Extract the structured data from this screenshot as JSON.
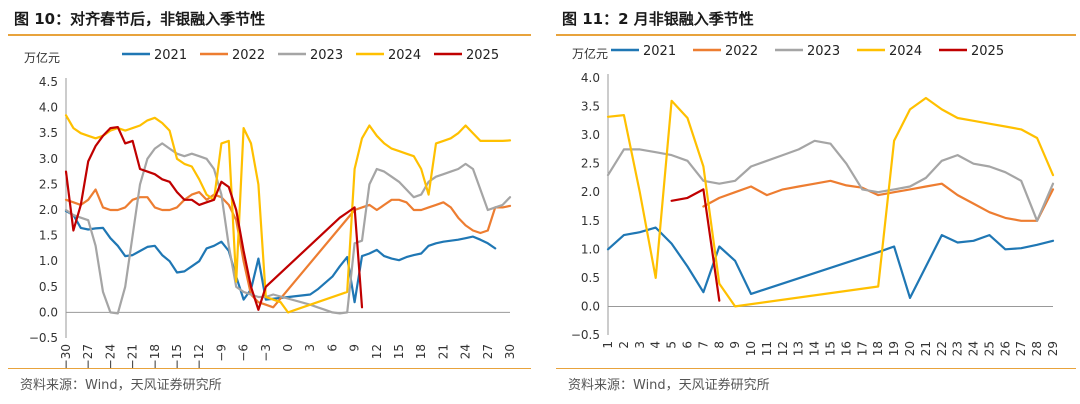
{
  "chart_data": [
    {
      "type": "line",
      "title": "图 10：对齐春节后，非银融入季节性",
      "ylabel": "万亿元",
      "xlabel": "",
      "ylim": [
        -0.5,
        4.5
      ],
      "yticks": [
        "−0.5",
        "0.0",
        "0.5",
        "1.0",
        "1.5",
        "2.0",
        "2.5",
        "3.0",
        "3.5",
        "4.0",
        "4.5"
      ],
      "xlim": [
        -30,
        30
      ],
      "xticks": [
        "−30",
        "−27",
        "−24",
        "−21",
        "−18",
        "−15",
        "−12",
        "−9",
        "−6",
        "−3",
        "0",
        "3",
        "6",
        "9",
        "12",
        "15",
        "18",
        "21",
        "24",
        "27",
        "30"
      ],
      "legend_position": "top",
      "source": "资料来源：Wind，天风证券研究所",
      "series": [
        {
          "name": "2021",
          "color": "#1f77b4",
          "x": [
            -30,
            -29,
            -28,
            -27,
            -26,
            -25,
            -24,
            -23,
            -22,
            -21,
            -20,
            -19,
            -18,
            -17,
            -16,
            -15,
            -14,
            -13,
            -12,
            -11,
            -10,
            -9,
            -8,
            -7,
            -6,
            -5,
            -4,
            -3,
            3,
            4,
            6,
            7,
            8,
            9,
            10,
            11,
            12,
            13,
            14,
            15,
            16,
            17,
            18,
            19,
            20,
            21,
            22,
            23,
            24,
            25,
            26,
            27,
            28
          ],
          "y": [
            1.98,
            1.9,
            1.65,
            1.62,
            1.64,
            1.65,
            1.45,
            1.3,
            1.1,
            1.12,
            1.2,
            1.28,
            1.3,
            1.12,
            1.0,
            0.78,
            0.8,
            0.9,
            1.0,
            1.25,
            1.3,
            1.38,
            1.2,
            0.7,
            0.25,
            0.45,
            1.05,
            0.25,
            0.35,
            0.45,
            0.7,
            0.9,
            1.08,
            0.2,
            1.1,
            1.15,
            1.22,
            1.1,
            1.05,
            1.02,
            1.08,
            1.12,
            1.15,
            1.3,
            1.35,
            1.38,
            1.4,
            1.42,
            1.45,
            1.48,
            1.42,
            1.35,
            1.25
          ]
        },
        {
          "name": "2022",
          "color": "#ed7d31",
          "x": [
            -30,
            -29,
            -28,
            -27,
            -26,
            -25,
            -24,
            -23,
            -22,
            -21,
            -20,
            -19,
            -18,
            -17,
            -16,
            -15,
            -14,
            -13,
            -12,
            -11,
            -10,
            -9,
            -8,
            -7,
            -6,
            -5,
            -4,
            -3,
            -2,
            9,
            10,
            11,
            12,
            13,
            14,
            15,
            16,
            17,
            18,
            19,
            20,
            21,
            22,
            23,
            24,
            25,
            26,
            27,
            28,
            29,
            30
          ],
          "y": [
            2.2,
            2.15,
            2.1,
            2.2,
            2.4,
            2.05,
            2.0,
            2.0,
            2.05,
            2.2,
            2.25,
            2.25,
            2.05,
            2.0,
            2.0,
            2.05,
            2.2,
            2.3,
            2.35,
            2.2,
            2.3,
            2.25,
            2.1,
            1.8,
            1.0,
            0.35,
            0.2,
            0.15,
            0.1,
            2.0,
            2.05,
            2.1,
            2.0,
            2.1,
            2.2,
            2.2,
            2.15,
            2.0,
            2.0,
            2.05,
            2.1,
            2.15,
            2.05,
            1.85,
            1.7,
            1.6,
            1.55,
            1.6,
            2.05,
            2.05,
            2.08
          ]
        },
        {
          "name": "2023",
          "color": "#a5a5a5",
          "x": [
            -30,
            -29,
            -28,
            -27,
            -26,
            -25,
            -24,
            -23,
            -22,
            -21,
            -20,
            -19,
            -18,
            -17,
            -16,
            -15,
            -14,
            -13,
            -12,
            -11,
            -10,
            -9,
            -8,
            -7,
            -6,
            -5,
            -4,
            -3,
            -2,
            3,
            4,
            5,
            6,
            7,
            8,
            9,
            10,
            11,
            12,
            13,
            14,
            15,
            16,
            17,
            18,
            19,
            20,
            21,
            22,
            23,
            24,
            25,
            26,
            27,
            28,
            29,
            30
          ],
          "y": [
            2.0,
            1.9,
            1.85,
            1.8,
            1.3,
            0.4,
            0.0,
            -0.02,
            0.5,
            1.5,
            2.5,
            3.0,
            3.2,
            3.3,
            3.2,
            3.1,
            3.05,
            3.1,
            3.05,
            3.0,
            2.8,
            2.3,
            1.3,
            0.5,
            0.4,
            0.35,
            0.3,
            0.3,
            0.35,
            0.15,
            0.1,
            0.05,
            0.0,
            -0.02,
            0.0,
            1.35,
            1.4,
            2.5,
            2.8,
            2.75,
            2.65,
            2.55,
            2.4,
            2.25,
            2.3,
            2.55,
            2.65,
            2.7,
            2.75,
            2.8,
            2.9,
            2.8,
            2.4,
            2.0,
            2.05,
            2.1,
            2.25
          ]
        },
        {
          "name": "2024",
          "color": "#ffc000",
          "x": [
            -30,
            -29,
            -28,
            -27,
            -26,
            -25,
            -24,
            -23,
            -22,
            -21,
            -20,
            -19,
            -18,
            -17,
            -16,
            -15,
            -14,
            -13,
            -12,
            -11,
            -10,
            -9,
            -8,
            -7,
            -6,
            -5,
            -4,
            -3,
            -2,
            -1,
            0,
            1,
            8,
            9,
            10,
            11,
            12,
            13,
            14,
            15,
            16,
            17,
            18,
            19,
            20,
            21,
            22,
            23,
            24,
            25,
            26,
            27,
            28,
            29,
            30
          ],
          "y": [
            3.85,
            3.6,
            3.5,
            3.45,
            3.4,
            3.45,
            3.55,
            3.6,
            3.55,
            3.6,
            3.65,
            3.75,
            3.8,
            3.7,
            3.55,
            3.0,
            2.9,
            2.85,
            2.6,
            2.3,
            2.2,
            3.3,
            3.35,
            0.6,
            3.6,
            3.3,
            2.5,
            0.3,
            0.25,
            0.2,
            0.0,
            0.05,
            0.4,
            2.8,
            3.4,
            3.65,
            3.45,
            3.3,
            3.2,
            3.15,
            3.1,
            3.05,
            2.8,
            2.3,
            3.3,
            3.35,
            3.4,
            3.5,
            3.65,
            3.5,
            3.35,
            3.35,
            3.35,
            3.35,
            3.36
          ]
        },
        {
          "name": "2025",
          "color": "#c00000",
          "x": [
            -30,
            -29,
            -28,
            -27,
            -26,
            -25,
            -24,
            -23,
            -22,
            -21,
            -20,
            -19,
            -18,
            -17,
            -16,
            -15,
            -14,
            -13,
            -12,
            -11,
            -10,
            -9,
            -8,
            -7,
            -6,
            -5,
            -4,
            -3,
            7,
            8,
            9,
            10
          ],
          "y": [
            2.75,
            1.6,
            2.1,
            2.95,
            3.25,
            3.45,
            3.6,
            3.62,
            3.3,
            3.35,
            2.8,
            2.75,
            2.7,
            2.6,
            2.55,
            2.35,
            2.2,
            2.2,
            2.1,
            2.15,
            2.2,
            2.55,
            2.45,
            2.0,
            1.2,
            0.5,
            0.05,
            0.5,
            1.85,
            1.95,
            2.05,
            0.1
          ]
        }
      ]
    },
    {
      "type": "line",
      "title": "图 11：2 月非银融入季节性",
      "ylabel": "万亿元",
      "xlabel": "",
      "ylim": [
        -0.5,
        4.0
      ],
      "yticks": [
        "−0.5",
        "0.0",
        "0.5",
        "1.0",
        "1.5",
        "2.0",
        "2.5",
        "3.0",
        "3.5",
        "4.0"
      ],
      "xlim": [
        1,
        29
      ],
      "xticks": [
        "1",
        "2",
        "3",
        "4",
        "5",
        "6",
        "7",
        "8",
        "9",
        "10",
        "11",
        "12",
        "13",
        "14",
        "15",
        "16",
        "17",
        "18",
        "19",
        "20",
        "21",
        "22",
        "23",
        "24",
        "25",
        "26",
        "27",
        "28",
        "29"
      ],
      "legend_position": "top",
      "source": "资料来源：Wind，天风证券研究所",
      "series": [
        {
          "name": "2021",
          "color": "#1f77b4",
          "x": [
            1,
            2,
            3,
            4,
            5,
            6,
            7,
            8,
            9,
            10,
            18,
            19,
            20,
            21,
            22,
            23,
            24,
            25,
            26,
            27,
            28,
            29
          ],
          "y": [
            1.0,
            1.25,
            1.3,
            1.38,
            1.1,
            0.7,
            0.25,
            1.05,
            0.8,
            0.22,
            0.95,
            1.05,
            0.15,
            0.7,
            1.25,
            1.12,
            1.15,
            1.25,
            1.0,
            1.02,
            1.08,
            1.15
          ]
        },
        {
          "name": "2022",
          "color": "#ed7d31",
          "x": [
            7,
            8,
            9,
            10,
            11,
            12,
            13,
            14,
            15,
            16,
            17,
            18,
            19,
            20,
            21,
            22,
            23,
            24,
            25,
            26,
            27,
            28,
            29
          ],
          "y": [
            1.75,
            1.9,
            2.0,
            2.1,
            1.95,
            2.05,
            2.1,
            2.15,
            2.2,
            2.12,
            2.08,
            1.95,
            2.0,
            2.05,
            2.1,
            2.15,
            1.95,
            1.8,
            1.65,
            1.55,
            1.5,
            1.5,
            2.05
          ]
        },
        {
          "name": "2023",
          "color": "#a5a5a5",
          "x": [
            1,
            2,
            3,
            4,
            5,
            6,
            7,
            8,
            9,
            10,
            11,
            12,
            13,
            14,
            15,
            16,
            17,
            18,
            19,
            20,
            21,
            22,
            23,
            24,
            25,
            26,
            27,
            28,
            29
          ],
          "y": [
            2.3,
            2.75,
            2.75,
            2.7,
            2.65,
            2.55,
            2.2,
            2.15,
            2.2,
            2.45,
            2.55,
            2.65,
            2.75,
            2.9,
            2.85,
            2.5,
            2.05,
            2.0,
            2.05,
            2.1,
            2.25,
            2.55,
            2.65,
            2.5,
            2.45,
            2.35,
            2.2,
            1.5,
            2.15
          ]
        },
        {
          "name": "2024",
          "color": "#ffc000",
          "x": [
            1,
            2,
            3,
            4,
            5,
            6,
            7,
            8,
            9,
            18,
            19,
            20,
            21,
            22,
            23,
            24,
            25,
            26,
            27,
            28,
            29
          ],
          "y": [
            3.32,
            3.35,
            2.0,
            0.5,
            3.6,
            3.3,
            2.45,
            0.4,
            0.0,
            0.35,
            2.9,
            3.45,
            3.65,
            3.45,
            3.3,
            3.25,
            3.2,
            3.15,
            3.1,
            2.95,
            2.3
          ]
        },
        {
          "name": "2025",
          "color": "#c00000",
          "x": [
            5,
            6,
            7,
            8
          ],
          "y": [
            1.85,
            1.9,
            2.05,
            0.1
          ]
        }
      ]
    }
  ]
}
